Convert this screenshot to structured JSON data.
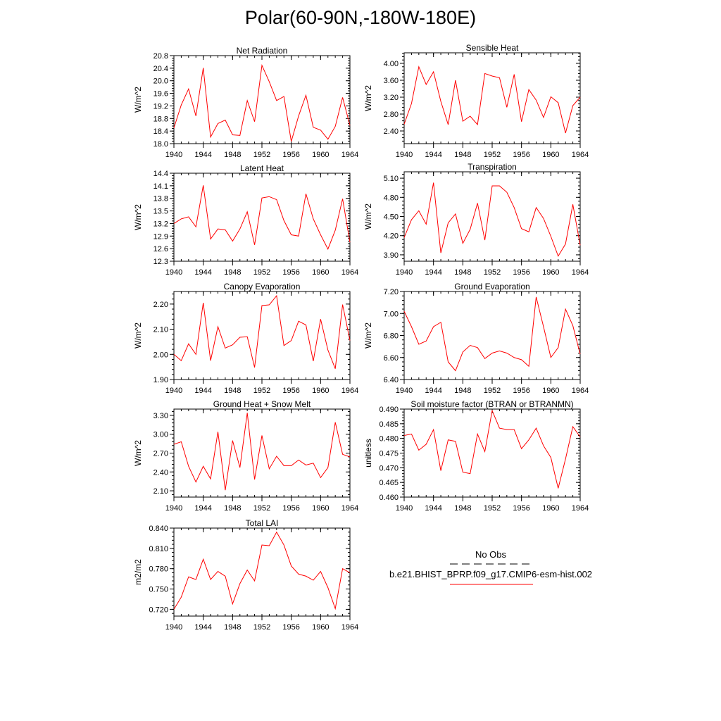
{
  "title": "Polar(60-90N,-180W-180E)",
  "colors": {
    "series": "#ff0000",
    "axis": "#000000"
  },
  "legend": {
    "entries": [
      {
        "label": "No Obs",
        "style": "dashed",
        "color": "#000000"
      },
      {
        "label": "b.e21.BHIST_BPRP.f09_g17.CMIP6-esm-hist.002",
        "style": "solid",
        "color": "#ff0000"
      }
    ]
  },
  "chart_data": [
    {
      "type": "line",
      "title": "Net Radiation",
      "ylabel": "W/m^2",
      "xlim": [
        1940,
        1964
      ],
      "ylim": [
        18.0,
        20.8
      ],
      "xticks": [
        1940,
        1944,
        1948,
        1952,
        1956,
        1960,
        1964
      ],
      "xtick_labels": [
        "1940",
        "1944",
        "1948",
        "1952",
        "1956",
        "1960",
        "1964"
      ],
      "yticks": [
        18.0,
        18.4,
        18.8,
        19.2,
        19.6,
        20.0,
        20.4,
        20.8
      ],
      "ytick_labels": [
        "18.0",
        "18.4",
        "18.8",
        "19.2",
        "19.6",
        "20.0",
        "20.4",
        "20.8"
      ],
      "x": [
        1940,
        1941,
        1942,
        1943,
        1944,
        1945,
        1946,
        1947,
        1948,
        1949,
        1950,
        1951,
        1952,
        1953,
        1954,
        1955,
        1956,
        1957,
        1958,
        1959,
        1960,
        1961,
        1962,
        1963,
        1964
      ],
      "series": [
        {
          "values": [
            18.5,
            19.23,
            19.74,
            18.88,
            20.41,
            18.21,
            18.64,
            18.75,
            18.28,
            18.26,
            19.37,
            18.7,
            20.49,
            19.97,
            19.37,
            19.5,
            18.07,
            18.88,
            19.54,
            18.52,
            18.43,
            18.14,
            18.55,
            19.47,
            18.58
          ]
        }
      ]
    },
    {
      "type": "line",
      "title": "Sensible Heat",
      "ylabel": "W/m^2",
      "xlim": [
        1940,
        1964
      ],
      "ylim": [
        2.1,
        4.25
      ],
      "xticks": [
        1940,
        1944,
        1948,
        1952,
        1956,
        1960,
        1964
      ],
      "xtick_labels": [
        "1940",
        "1944",
        "1948",
        "1952",
        "1956",
        "1960",
        "1964"
      ],
      "yticks": [
        2.4,
        2.8,
        3.2,
        3.6,
        4.0
      ],
      "ytick_labels": [
        "2.40",
        "2.80",
        "3.20",
        "3.60",
        "4.00"
      ],
      "x": [
        1940,
        1941,
        1942,
        1943,
        1944,
        1945,
        1946,
        1947,
        1948,
        1949,
        1950,
        1951,
        1952,
        1953,
        1954,
        1955,
        1956,
        1957,
        1958,
        1959,
        1960,
        1961,
        1962,
        1963,
        1964
      ],
      "series": [
        {
          "values": [
            2.56,
            3.05,
            3.92,
            3.5,
            3.8,
            3.1,
            2.55,
            3.6,
            2.63,
            2.75,
            2.55,
            3.76,
            3.7,
            3.66,
            2.96,
            3.74,
            2.62,
            3.38,
            3.13,
            2.72,
            3.21,
            3.07,
            2.35,
            3.0,
            3.2
          ]
        }
      ]
    },
    {
      "type": "line",
      "title": "Latent Heat",
      "ylabel": "W/m^2",
      "xlim": [
        1940,
        1964
      ],
      "ylim": [
        12.3,
        14.4
      ],
      "xticks": [
        1940,
        1944,
        1948,
        1952,
        1956,
        1960,
        1964
      ],
      "xtick_labels": [
        "1940",
        "1944",
        "1948",
        "1952",
        "1956",
        "1960",
        "1964"
      ],
      "yticks": [
        12.3,
        12.6,
        12.9,
        13.2,
        13.5,
        13.8,
        14.1,
        14.4
      ],
      "ytick_labels": [
        "12.3",
        "12.6",
        "12.9",
        "13.2",
        "13.5",
        "13.8",
        "14.1",
        "14.4"
      ],
      "x": [
        1940,
        1941,
        1942,
        1943,
        1944,
        1945,
        1946,
        1947,
        1948,
        1949,
        1950,
        1951,
        1952,
        1953,
        1954,
        1955,
        1956,
        1957,
        1958,
        1959,
        1960,
        1961,
        1962,
        1963,
        1964
      ],
      "series": [
        {
          "values": [
            13.2,
            13.31,
            13.36,
            13.12,
            14.11,
            12.83,
            13.07,
            13.05,
            12.78,
            13.07,
            13.48,
            12.69,
            13.81,
            13.84,
            13.77,
            13.27,
            12.93,
            12.9,
            13.91,
            13.31,
            12.93,
            12.59,
            13.04,
            13.79,
            12.75
          ]
        }
      ]
    },
    {
      "type": "line",
      "title": "Transpiration",
      "ylabel": "W/m^2",
      "xlim": [
        1940,
        1964
      ],
      "ylim": [
        3.8,
        5.2
      ],
      "xticks": [
        1940,
        1944,
        1948,
        1952,
        1956,
        1960,
        1964
      ],
      "xtick_labels": [
        "1940",
        "1944",
        "1948",
        "1952",
        "1956",
        "1960",
        "1964"
      ],
      "yticks": [
        3.9,
        4.2,
        4.5,
        4.8,
        5.1
      ],
      "ytick_labels": [
        "3.90",
        "4.20",
        "4.50",
        "4.80",
        "5.10"
      ],
      "x": [
        1940,
        1941,
        1942,
        1943,
        1944,
        1945,
        1946,
        1947,
        1948,
        1949,
        1950,
        1951,
        1952,
        1953,
        1954,
        1955,
        1956,
        1957,
        1958,
        1959,
        1960,
        1961,
        1962,
        1963,
        1964
      ],
      "series": [
        {
          "values": [
            4.17,
            4.45,
            4.59,
            4.38,
            5.03,
            3.93,
            4.4,
            4.54,
            4.08,
            4.3,
            4.71,
            4.13,
            4.98,
            4.98,
            4.88,
            4.64,
            4.31,
            4.26,
            4.64,
            4.47,
            4.19,
            3.88,
            4.07,
            4.69,
            4.05
          ]
        }
      ]
    },
    {
      "type": "line",
      "title": "Canopy Evaporation",
      "ylabel": "W/m^2",
      "xlim": [
        1940,
        1964
      ],
      "ylim": [
        1.9,
        2.25
      ],
      "xticks": [
        1940,
        1944,
        1948,
        1952,
        1956,
        1960,
        1964
      ],
      "xtick_labels": [
        "1940",
        "1944",
        "1948",
        "1952",
        "1956",
        "1960",
        "1964"
      ],
      "yticks": [
        1.9,
        2.0,
        2.1,
        2.2
      ],
      "ytick_labels": [
        "1.90",
        "2.00",
        "2.10",
        "2.20"
      ],
      "x": [
        1940,
        1941,
        1942,
        1943,
        1944,
        1945,
        1946,
        1947,
        1948,
        1949,
        1950,
        1951,
        1952,
        1953,
        1954,
        1955,
        1956,
        1957,
        1958,
        1959,
        1960,
        1961,
        1962,
        1963,
        1964
      ],
      "series": [
        {
          "values": [
            2.0,
            1.975,
            2.042,
            2.0,
            2.205,
            1.975,
            2.11,
            2.025,
            2.038,
            2.068,
            2.07,
            1.948,
            2.194,
            2.197,
            2.233,
            2.035,
            2.055,
            2.132,
            2.117,
            1.973,
            2.14,
            2.017,
            1.943,
            2.198,
            2.055
          ]
        }
      ]
    },
    {
      "type": "line",
      "title": "Ground Evaporation",
      "ylabel": "W/m^2",
      "xlim": [
        1940,
        1964
      ],
      "ylim": [
        6.4,
        7.2
      ],
      "xticks": [
        1940,
        1944,
        1948,
        1952,
        1956,
        1960,
        1964
      ],
      "xtick_labels": [
        "1940",
        "1944",
        "1948",
        "1952",
        "1956",
        "1960",
        "1964"
      ],
      "yticks": [
        6.4,
        6.6,
        6.8,
        7.0,
        7.2
      ],
      "ytick_labels": [
        "6.40",
        "6.60",
        "6.80",
        "7.00",
        "7.20"
      ],
      "x": [
        1940,
        1941,
        1942,
        1943,
        1944,
        1945,
        1946,
        1947,
        1948,
        1949,
        1950,
        1951,
        1952,
        1953,
        1954,
        1955,
        1956,
        1957,
        1958,
        1959,
        1960,
        1961,
        1962,
        1963,
        1964
      ],
      "series": [
        {
          "values": [
            7.02,
            6.88,
            6.72,
            6.75,
            6.88,
            6.92,
            6.56,
            6.48,
            6.65,
            6.71,
            6.69,
            6.59,
            6.64,
            6.66,
            6.64,
            6.6,
            6.58,
            6.52,
            7.15,
            6.88,
            6.6,
            6.69,
            7.04,
            6.89,
            6.63
          ]
        }
      ]
    },
    {
      "type": "line",
      "title": "Ground Heat + Snow Melt",
      "ylabel": "W/m^2",
      "xlim": [
        1940,
        1964
      ],
      "ylim": [
        2.0,
        3.4
      ],
      "xticks": [
        1940,
        1944,
        1948,
        1952,
        1956,
        1960,
        1964
      ],
      "xtick_labels": [
        "1940",
        "1944",
        "1948",
        "1952",
        "1956",
        "1960",
        "1964"
      ],
      "yticks": [
        2.1,
        2.4,
        2.7,
        3.0,
        3.3
      ],
      "ytick_labels": [
        "2.10",
        "2.40",
        "2.70",
        "3.00",
        "3.30"
      ],
      "x": [
        1940,
        1941,
        1942,
        1943,
        1944,
        1945,
        1946,
        1947,
        1948,
        1949,
        1950,
        1951,
        1952,
        1953,
        1954,
        1955,
        1956,
        1957,
        1958,
        1959,
        1960,
        1961,
        1962,
        1963,
        1964
      ],
      "series": [
        {
          "values": [
            2.84,
            2.88,
            2.49,
            2.24,
            2.49,
            2.29,
            3.04,
            2.11,
            2.9,
            2.47,
            3.34,
            2.28,
            2.98,
            2.45,
            2.65,
            2.5,
            2.5,
            2.59,
            2.51,
            2.54,
            2.31,
            2.47,
            3.19,
            2.68,
            2.64
          ]
        }
      ]
    },
    {
      "type": "line",
      "title": "Soil moisture factor (BTRAN or BTRANMN)",
      "ylabel": "unitless",
      "xlim": [
        1940,
        1964
      ],
      "ylim": [
        0.46,
        0.49
      ],
      "xticks": [
        1940,
        1944,
        1948,
        1952,
        1956,
        1960,
        1964
      ],
      "xtick_labels": [
        "1940",
        "1944",
        "1948",
        "1952",
        "1956",
        "1960",
        "1964"
      ],
      "yticks": [
        0.46,
        0.465,
        0.47,
        0.475,
        0.48,
        0.485,
        0.49
      ],
      "ytick_labels": [
        "0.460",
        "0.465",
        "0.470",
        "0.475",
        "0.480",
        "0.485",
        "0.490"
      ],
      "x": [
        1940,
        1941,
        1942,
        1943,
        1944,
        1945,
        1946,
        1947,
        1948,
        1949,
        1950,
        1951,
        1952,
        1953,
        1954,
        1955,
        1956,
        1957,
        1958,
        1959,
        1960,
        1961,
        1962,
        1963,
        1964
      ],
      "series": [
        {
          "values": [
            0.481,
            0.4815,
            0.476,
            0.478,
            0.483,
            0.469,
            0.4795,
            0.479,
            0.4685,
            0.468,
            0.4815,
            0.4755,
            0.4895,
            0.4835,
            0.483,
            0.483,
            0.4765,
            0.4795,
            0.4835,
            0.4775,
            0.4735,
            0.463,
            0.473,
            0.484,
            0.4805
          ]
        }
      ]
    },
    {
      "type": "line",
      "title": "Total LAI",
      "ylabel": "m2/m2",
      "xlim": [
        1940,
        1964
      ],
      "ylim": [
        0.71,
        0.84
      ],
      "xticks": [
        1940,
        1944,
        1948,
        1952,
        1956,
        1960,
        1964
      ],
      "xtick_labels": [
        "1940",
        "1944",
        "1948",
        "1952",
        "1956",
        "1960",
        "1964"
      ],
      "yticks": [
        0.72,
        0.75,
        0.78,
        0.81,
        0.84
      ],
      "ytick_labels": [
        "0.720",
        "0.750",
        "0.780",
        "0.810",
        "0.840"
      ],
      "x": [
        1940,
        1941,
        1942,
        1943,
        1944,
        1945,
        1946,
        1947,
        1948,
        1949,
        1950,
        1951,
        1952,
        1953,
        1954,
        1955,
        1956,
        1957,
        1958,
        1959,
        1960,
        1961,
        1962,
        1963,
        1964
      ],
      "series": [
        {
          "values": [
            0.72,
            0.738,
            0.768,
            0.764,
            0.794,
            0.764,
            0.776,
            0.769,
            0.728,
            0.758,
            0.778,
            0.762,
            0.815,
            0.814,
            0.834,
            0.815,
            0.784,
            0.772,
            0.769,
            0.763,
            0.776,
            0.752,
            0.721,
            0.78,
            0.774
          ]
        }
      ]
    }
  ]
}
